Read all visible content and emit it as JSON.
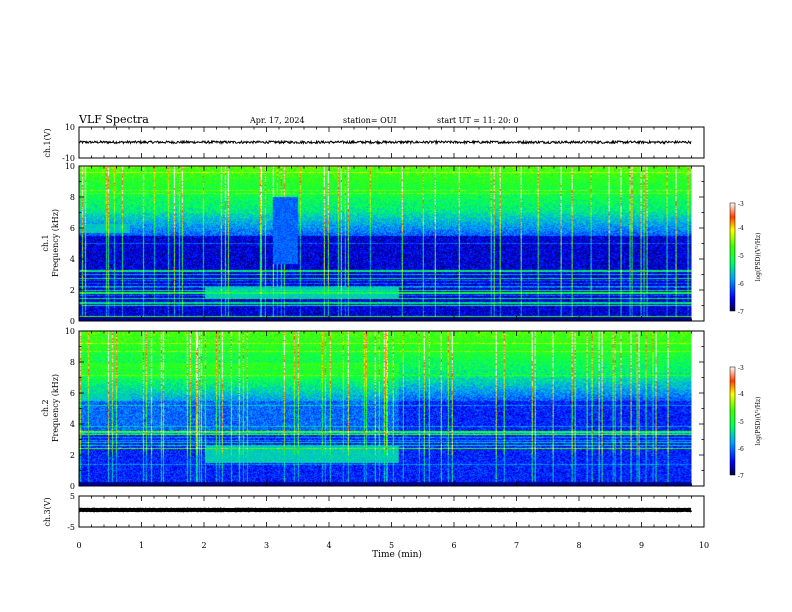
{
  "header": {
    "title": "VLF Spectra",
    "date": "Apr. 17, 2024",
    "station": "station= OUI",
    "start_ut": "start UT =   11: 20: 0"
  },
  "chart_data": [
    {
      "type": "line",
      "id": "ch1_waveform",
      "ylabel": "ch.1(V)",
      "ylim": [
        -10,
        10
      ],
      "yticks": [
        "10",
        "-10"
      ],
      "xlim": [
        0,
        10
      ],
      "series": [
        {
          "x": [
            0,
            9.8
          ],
          "y": [
            0.2,
            0.2
          ]
        }
      ]
    },
    {
      "type": "heatmap",
      "id": "ch1_spectrogram",
      "ylabel_top": "ch.1",
      "ylabel": "Frequency (kHz)",
      "ylim": [
        0,
        10
      ],
      "yticks": [
        "0",
        "2",
        "4",
        "6",
        "8",
        "10"
      ],
      "xlim": [
        0,
        10
      ],
      "data_extent_min": 9.8,
      "features": [
        {
          "type": "band",
          "x": [
            2.0,
            5.1
          ],
          "y": [
            1.5,
            2.2
          ]
        },
        {
          "type": "patch",
          "x": [
            0.0,
            0.8
          ],
          "y": [
            5.7,
            6.3
          ]
        },
        {
          "type": "dark_column",
          "x": [
            3.1,
            3.5
          ],
          "y": [
            3.7,
            8.0
          ]
        }
      ],
      "colorbar": {
        "label": "log(PSD)(V²/Hz)",
        "range": [
          -7,
          -3
        ],
        "ticks": [
          "-3",
          "-4",
          "-5",
          "-6",
          "-7"
        ]
      }
    },
    {
      "type": "heatmap",
      "id": "ch2_spectrogram",
      "ylabel_top": "ch.2",
      "ylabel": "Frequency (kHz)",
      "ylim": [
        0,
        10
      ],
      "yticks": [
        "0",
        "2",
        "4",
        "6",
        "8",
        "10"
      ],
      "xlim": [
        0,
        10
      ],
      "data_extent_min": 9.8,
      "features": [
        {
          "type": "band",
          "x": [
            2.0,
            5.1
          ],
          "y": [
            1.5,
            2.6
          ]
        },
        {
          "type": "patch",
          "x": [
            0.0,
            0.8
          ],
          "y": [
            5.5,
            6.5
          ]
        }
      ],
      "colorbar": {
        "label": "log(PSD)(V²/Hz)",
        "range": [
          -7,
          -3
        ],
        "ticks": [
          "-3",
          "-4",
          "-5",
          "-6",
          "-7"
        ]
      }
    },
    {
      "type": "line",
      "id": "ch3_waveform",
      "ylabel": "ch.3(V)",
      "ylim": [
        -5,
        5
      ],
      "yticks": [
        "5",
        "-5"
      ],
      "xlim": [
        0,
        10
      ],
      "xlabel": "Time (min)",
      "xticks": [
        "0",
        "1",
        "2",
        "3",
        "4",
        "5",
        "6",
        "7",
        "8",
        "9",
        "10"
      ],
      "series": [
        {
          "x": [
            0,
            9.8
          ],
          "y": [
            0.5,
            0.5
          ]
        }
      ]
    }
  ]
}
